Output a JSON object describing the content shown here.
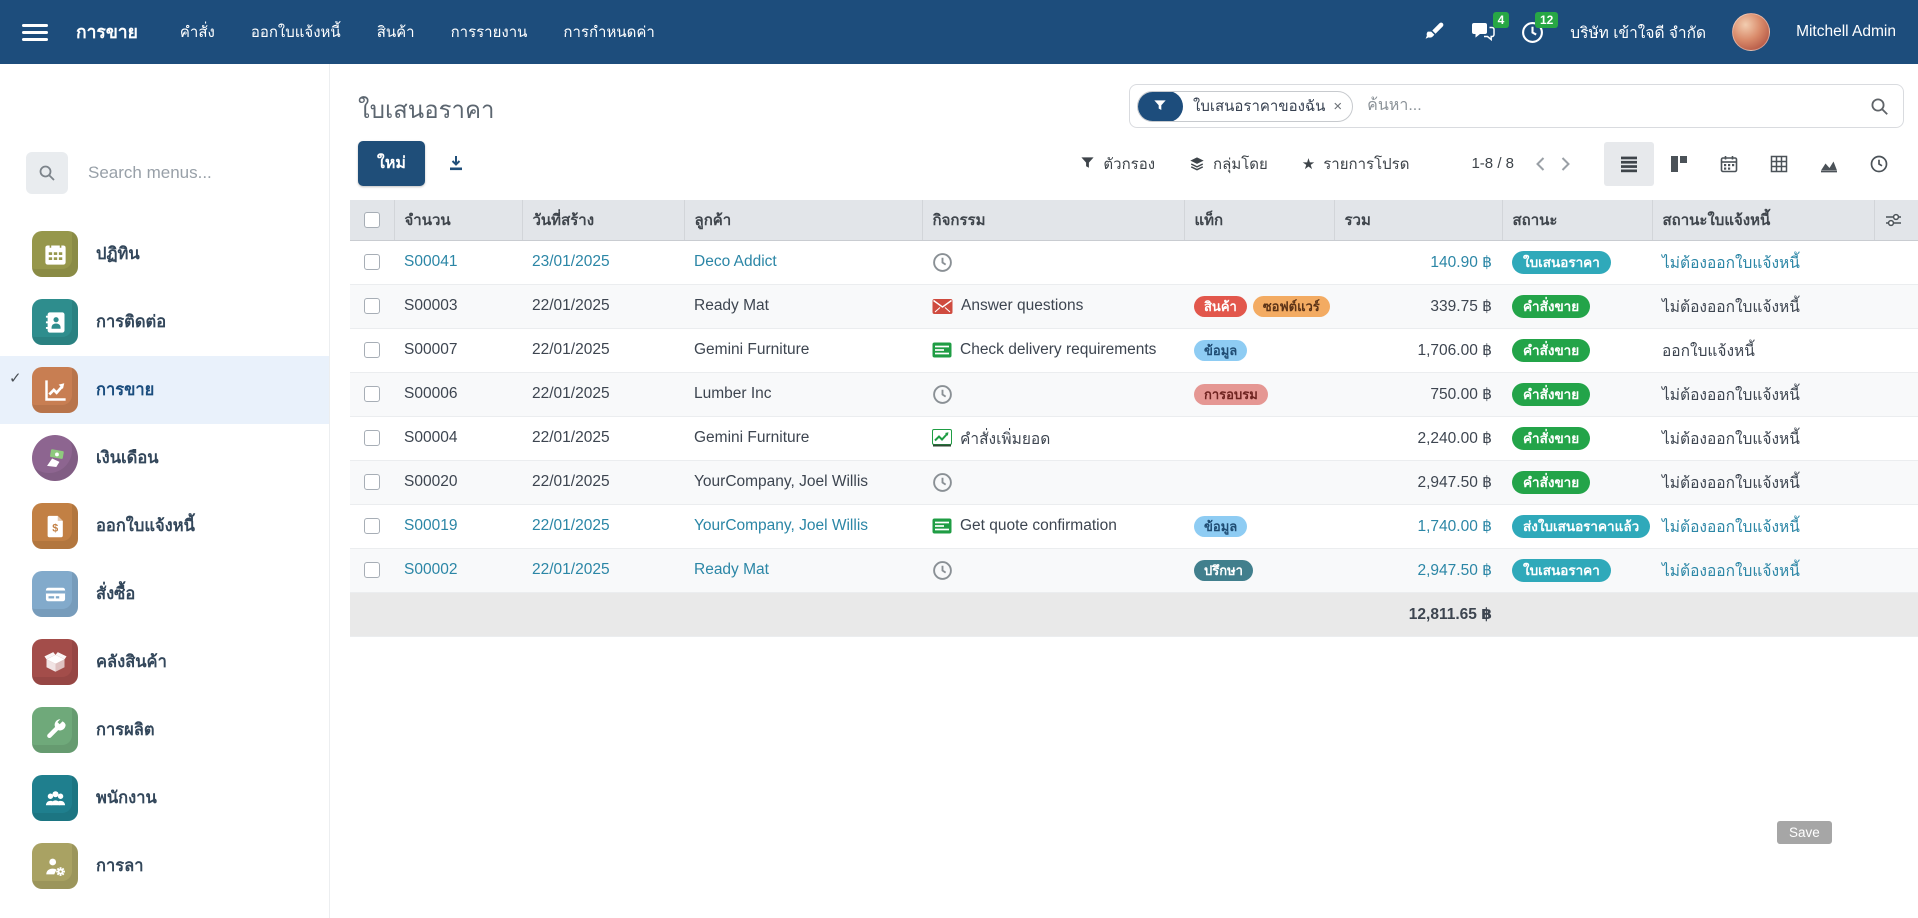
{
  "topbar": {
    "app_name": "การขาย",
    "menus": [
      "คำสั่ง",
      "ออกใบแจ้งหนี้",
      "สินค้า",
      "การรายงาน",
      "การกำหนดค่า"
    ],
    "message_badge": "4",
    "activity_badge": "12",
    "company": "บริษัท เข้าใจดี จำกัด",
    "user_name": "Mitchell Admin"
  },
  "sidebar": {
    "search_placeholder": "Search menus...",
    "items": [
      {
        "label": "ปฏิทิน",
        "icon": "calendar-app",
        "color": "#96974b",
        "shape": "square",
        "active": false
      },
      {
        "label": "การติดต่อ",
        "icon": "contacts-app",
        "color": "#2e8d8d",
        "shape": "square",
        "active": false
      },
      {
        "label": "การขาย",
        "icon": "sales-app",
        "color": "#c87e52",
        "shape": "square",
        "active": true
      },
      {
        "label": "เงินเดือน",
        "icon": "payroll-app",
        "color": "#8d6590",
        "shape": "circle",
        "active": false
      },
      {
        "label": "ออกใบแจ้งหนี้",
        "icon": "invoicing-app",
        "color": "#c28044",
        "shape": "square",
        "active": false
      },
      {
        "label": "สั่งซื้อ",
        "icon": "purchase-app",
        "color": "#82aacb",
        "shape": "square",
        "active": false
      },
      {
        "label": "คลังสินค้า",
        "icon": "inventory-app",
        "color": "#a34d4a",
        "shape": "square",
        "active": false
      },
      {
        "label": "การผลิต",
        "icon": "manufacturing-app",
        "color": "#6fa97a",
        "shape": "square",
        "active": false
      },
      {
        "label": "พนักงาน",
        "icon": "employees-app",
        "color": "#1f7f8e",
        "shape": "square",
        "active": false
      },
      {
        "label": "การลา",
        "icon": "timeoff-app",
        "color": "#a9a263",
        "shape": "square",
        "active": false
      }
    ]
  },
  "control": {
    "page_title": "ใบเสนอราคา",
    "filter_chip": "ใบเสนอราคาของฉัน",
    "filter_chip_remove": "×",
    "search_placeholder": "ค้นหา...",
    "new_button": "ใหม่",
    "filters_label": "ตัวกรอง",
    "groupby_label": "กลุ่มโดย",
    "favorites_label": "รายการโปรด",
    "favorites_star": "★",
    "pager": "1-8 / 8"
  },
  "table": {
    "headers": {
      "number": "จำนวน",
      "date": "วันที่สร้าง",
      "customer": "ลูกค้า",
      "activity": "กิจกรรม",
      "tags": "แท็ก",
      "total": "รวม",
      "status": "สถานะ",
      "invoice_status": "สถานะใบแจ้งหนี้"
    },
    "rows": [
      {
        "number": "S00041",
        "date": "23/01/2025",
        "customer": "Deco Addict",
        "activity_icon": "clock",
        "activity_label": "",
        "tags": [],
        "total": "140.90 ฿",
        "status": "ใบเสนอราคา",
        "status_color": "quotation",
        "invoice_status": "ไม่ต้องออกใบแจ้งหนี้",
        "emphasis": "info"
      },
      {
        "number": "S00003",
        "date": "22/01/2025",
        "customer": "Ready Mat",
        "activity_icon": "envelope",
        "activity_label": "Answer questions",
        "tags": [
          {
            "label": "สินค้า",
            "color": "red"
          },
          {
            "label": "ซอฟต์แวร์",
            "color": "orange"
          }
        ],
        "total": "339.75 ฿",
        "status": "คำสั่งขาย",
        "status_color": "sale",
        "invoice_status": "ไม่ต้องออกใบแจ้งหนี้",
        "emphasis": "normal"
      },
      {
        "number": "S00007",
        "date": "22/01/2025",
        "customer": "Gemini Furniture",
        "activity_icon": "tasks",
        "activity_label": "Check delivery requirements",
        "tags": [
          {
            "label": "ข้อมูล",
            "color": "blue"
          }
        ],
        "total": "1,706.00 ฿",
        "status": "คำสั่งขาย",
        "status_color": "sale",
        "invoice_status": "ออกใบแจ้งหนี้",
        "emphasis": "normal"
      },
      {
        "number": "S00006",
        "date": "22/01/2025",
        "customer": "Lumber Inc",
        "activity_icon": "clock",
        "activity_label": "",
        "tags": [
          {
            "label": "การอบรม",
            "color": "salmon"
          }
        ],
        "total": "750.00 ฿",
        "status": "คำสั่งขาย",
        "status_color": "sale",
        "invoice_status": "ไม่ต้องออกใบแจ้งหนี้",
        "emphasis": "normal"
      },
      {
        "number": "S00004",
        "date": "22/01/2025",
        "customer": "Gemini Furniture",
        "activity_icon": "upsell",
        "activity_label": "คำสั่งเพิ่มยอด",
        "tags": [],
        "total": "2,240.00 ฿",
        "status": "คำสั่งขาย",
        "status_color": "sale",
        "invoice_status": "ไม่ต้องออกใบแจ้งหนี้",
        "emphasis": "normal"
      },
      {
        "number": "S00020",
        "date": "22/01/2025",
        "customer": "YourCompany, Joel Willis",
        "activity_icon": "clock",
        "activity_label": "",
        "tags": [],
        "total": "2,947.50 ฿",
        "status": "คำสั่งขาย",
        "status_color": "sale",
        "invoice_status": "ไม่ต้องออกใบแจ้งหนี้",
        "emphasis": "normal"
      },
      {
        "number": "S00019",
        "date": "22/01/2025",
        "customer": "YourCompany, Joel Willis",
        "activity_icon": "tasks",
        "activity_label": "Get quote confirmation",
        "tags": [
          {
            "label": "ข้อมูล",
            "color": "blue"
          }
        ],
        "total": "1,740.00 ฿",
        "status": "ส่งใบเสนอราคาแล้ว",
        "status_color": "sent",
        "invoice_status": "ไม่ต้องออกใบแจ้งหนี้",
        "emphasis": "info"
      },
      {
        "number": "S00002",
        "date": "22/01/2025",
        "customer": "Ready Mat",
        "activity_icon": "clock",
        "activity_label": "",
        "tags": [
          {
            "label": "ปรึกษา",
            "color": "teal"
          }
        ],
        "total": "2,947.50 ฿",
        "status": "ใบเสนอราคา",
        "status_color": "quotation",
        "invoice_status": "ไม่ต้องออกใบแจ้งหนี้",
        "emphasis": "info"
      }
    ],
    "footer_total": "12,811.65 ฿"
  },
  "save_button": "Save",
  "colors": {
    "topbar_bg": "#1d4d7c",
    "accent": "#1f4e79",
    "notification_badge": "#28a745",
    "status_quotation": "#2fa9ba",
    "status_sent": "#2fa9ba",
    "status_sale": "#23a449",
    "info_row_text": "#2b86a6",
    "tag_red": "#e2574c",
    "tag_orange": "#f3ab62",
    "tag_blue": "#8eccf3",
    "tag_salmon": "#e59793",
    "tag_teal": "#417f8d",
    "active_menu_bg": "#e9f1fb"
  }
}
